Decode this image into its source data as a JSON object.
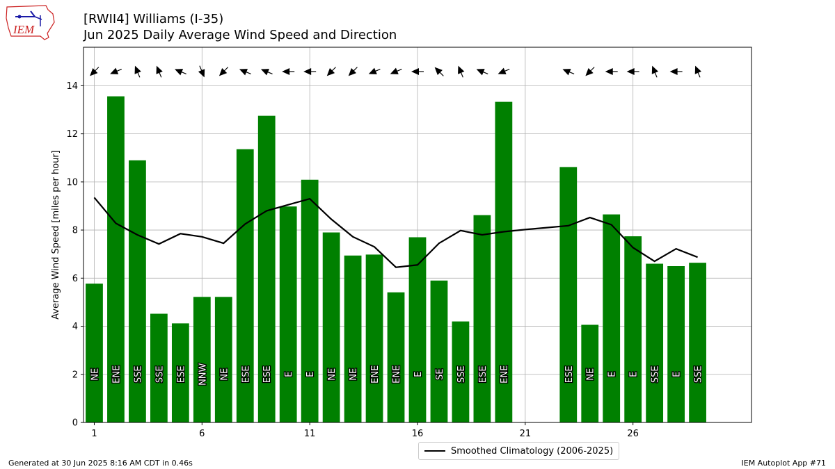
{
  "header": {
    "title_line1": "[RWII4] Williams (I-35)",
    "title_line2": "Jun 2025 Daily Average Wind Speed and Direction",
    "logo_text": "IEM"
  },
  "footer": {
    "generated": "Generated at 30 Jun 2025 8:16 AM CDT in 0.46s",
    "app": "IEM Autoplot App #71"
  },
  "colors": {
    "bar": "#008000",
    "climatology_line": "#000000",
    "grid": "#b0b0b0",
    "logo_red": "#cc2222",
    "logo_blue": "#1a1aa6"
  },
  "chart_data": {
    "type": "bar",
    "title": "Jun 2025 Daily Average Wind Speed and Direction",
    "ylabel": "Average Wind Speed [miles per hour]",
    "xlabel": "",
    "xlim": [
      0.5,
      31.5
    ],
    "ylim": [
      0,
      15.6
    ],
    "xticks": [
      1,
      6,
      11,
      16,
      21,
      26
    ],
    "yticks": [
      0,
      2,
      4,
      6,
      8,
      10,
      12,
      14
    ],
    "grid": true,
    "legend_position": "below-center",
    "days": [
      1,
      2,
      3,
      4,
      5,
      6,
      7,
      8,
      9,
      10,
      11,
      12,
      13,
      14,
      15,
      16,
      17,
      18,
      19,
      20,
      23,
      24,
      25,
      26,
      27,
      28,
      29
    ],
    "values": [
      5.77,
      13.56,
      10.9,
      4.52,
      4.12,
      5.22,
      5.22,
      11.36,
      12.75,
      8.98,
      10.09,
      7.9,
      6.94,
      6.98,
      5.41,
      7.7,
      5.9,
      4.2,
      8.62,
      13.33,
      10.62,
      4.06,
      8.65,
      7.74,
      6.6,
      6.5,
      6.64
    ],
    "direction_labels": [
      "NE",
      "ENE",
      "SSE",
      "SSE",
      "ESE",
      "NNW",
      "NE",
      "ESE",
      "ESE",
      "E",
      "E",
      "NE",
      "NE",
      "ENE",
      "ENE",
      "E",
      "SE",
      "SSE",
      "ESE",
      "ENE",
      "ESE",
      "NE",
      "E",
      "E",
      "SSE",
      "E",
      "SSE"
    ],
    "arrow_directions_deg": [
      45,
      67.5,
      157.5,
      157.5,
      112.5,
      337.5,
      45,
      112.5,
      112.5,
      90,
      90,
      45,
      45,
      67.5,
      67.5,
      90,
      135,
      157.5,
      112.5,
      67.5,
      112.5,
      45,
      90,
      90,
      157.5,
      90,
      157.5
    ],
    "series": [
      {
        "name": "Smoothed Climatology (2006-2025)",
        "x": [
          1,
          2,
          3,
          4,
          5,
          6,
          7,
          8,
          9,
          10,
          11,
          12,
          13,
          14,
          15,
          16,
          17,
          18,
          19,
          20,
          21,
          22,
          23,
          24,
          25,
          26,
          27,
          28,
          29
        ],
        "values": [
          9.35,
          8.28,
          7.8,
          7.42,
          7.85,
          7.72,
          7.45,
          8.25,
          8.8,
          9.05,
          9.3,
          8.45,
          7.72,
          7.3,
          6.45,
          6.55,
          7.45,
          7.98,
          7.8,
          7.93,
          8.02,
          8.1,
          8.18,
          8.52,
          8.22,
          7.27,
          6.7,
          7.22,
          6.87
        ]
      }
    ]
  }
}
